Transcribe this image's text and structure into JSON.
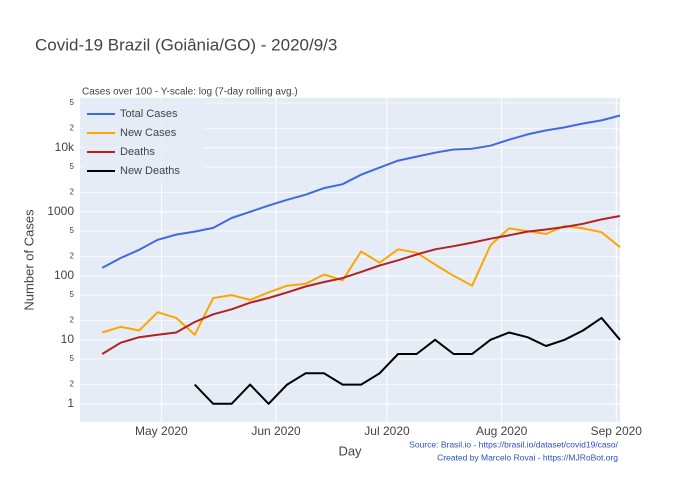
{
  "chart_data": {
    "type": "line",
    "title": "Covid-19 Brazil (Goiânia/GO) - 2020/9/3",
    "subtitle": "Cases over 100 - Y-scale: log (7-day rolling avg.)",
    "x_label": "Day",
    "y_label": "Number of Cases",
    "annotations": [
      "Source: Brasil.io - https://brasil.io/dataset/covid19/caso/",
      "Created by Marcelo Rovai - https://MJRoBot.org"
    ],
    "log_y": true,
    "grid": true,
    "legend_position": "top-left",
    "x": [
      "2020-04-15",
      "2020-04-20",
      "2020-04-25",
      "2020-04-30",
      "2020-05-05",
      "2020-05-10",
      "2020-05-15",
      "2020-05-20",
      "2020-05-25",
      "2020-05-30",
      "2020-06-04",
      "2020-06-09",
      "2020-06-14",
      "2020-06-19",
      "2020-06-24",
      "2020-06-29",
      "2020-07-04",
      "2020-07-09",
      "2020-07-14",
      "2020-07-19",
      "2020-07-24",
      "2020-07-29",
      "2020-08-03",
      "2020-08-08",
      "2020-08-13",
      "2020-08-18",
      "2020-08-23",
      "2020-08-28",
      "2020-09-02"
    ],
    "series": [
      {
        "name": "Total Cases",
        "color": "#4169e1",
        "values": [
          133,
          190,
          255,
          365,
          440,
          490,
          560,
          800,
          1000,
          1250,
          1540,
          1850,
          2350,
          2700,
          3800,
          4900,
          6300,
          7300,
          8400,
          9400,
          9700,
          10800,
          13400,
          16200,
          18700,
          20800,
          24000,
          26800,
          32000
        ]
      },
      {
        "name": "New Cases",
        "color": "#ffa500",
        "values": [
          13,
          16,
          14,
          27,
          22,
          12,
          45,
          50,
          42,
          55,
          70,
          75,
          105,
          85,
          240,
          160,
          260,
          230,
          150,
          100,
          70,
          300,
          550,
          500,
          450,
          600,
          550,
          480,
          280
        ]
      },
      {
        "name": "Deaths",
        "color": "#b22222",
        "values": [
          6,
          9,
          11,
          12,
          13,
          19,
          25,
          30,
          38,
          45,
          55,
          68,
          80,
          92,
          115,
          145,
          175,
          215,
          260,
          290,
          330,
          380,
          430,
          490,
          530,
          580,
          650,
          760,
          860
        ]
      },
      {
        "name": "New Deaths",
        "color": "#000000",
        "values": [
          1,
          null,
          null,
          null,
          null,
          2,
          1,
          1,
          2,
          1,
          2,
          3,
          3,
          2,
          2,
          3,
          6,
          6,
          10,
          6,
          6,
          10,
          13,
          11,
          8,
          10,
          14,
          22,
          10
        ]
      }
    ],
    "xlim": [
      "2020-04-09",
      "2020-09-02"
    ],
    "xticks": [
      {
        "value": "2020-05-01",
        "label": "May 2020"
      },
      {
        "value": "2020-06-01",
        "label": "Jun 2020"
      },
      {
        "value": "2020-07-01",
        "label": "Jul 2020"
      },
      {
        "value": "2020-08-01",
        "label": "Aug 2020"
      },
      {
        "value": "2020-09-01",
        "label": "Sep 2020"
      }
    ],
    "ylim": [
      0.52,
      60000
    ],
    "yticks": [
      1,
      2,
      5,
      10,
      {
        "value": 20,
        "label": "2"
      },
      {
        "value": 50,
        "label": "5"
      },
      100,
      {
        "value": 200,
        "label": "2"
      },
      {
        "value": 500,
        "label": "5"
      },
      1000,
      {
        "value": 2000,
        "label": "2"
      },
      {
        "value": 5000,
        "label": "5"
      },
      {
        "value": 10000,
        "label": "10k"
      },
      {
        "value": 20000,
        "label": "2"
      },
      {
        "value": 50000,
        "label": "5"
      }
    ]
  }
}
